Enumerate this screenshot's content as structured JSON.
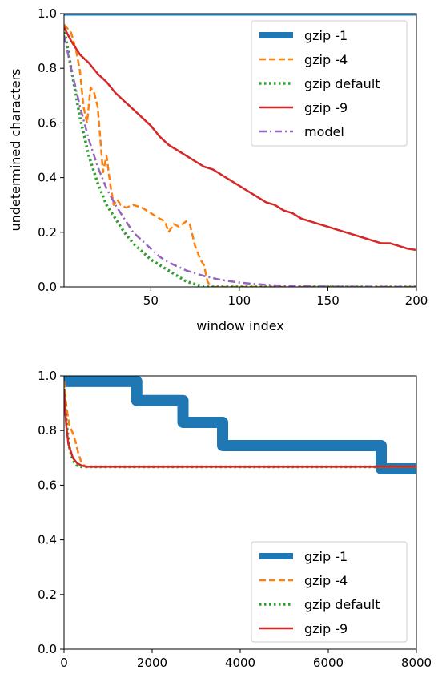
{
  "chart_data": [
    {
      "type": "line",
      "xlabel": "window index",
      "ylabel": "undetermined characters",
      "xlim": [
        1,
        200
      ],
      "ylim": [
        0.0,
        1.0
      ],
      "xticks": [
        50,
        100,
        150,
        200
      ],
      "yticks": [
        0.0,
        0.2,
        0.4,
        0.6,
        0.8,
        1.0
      ],
      "xtick_labels": [
        "50",
        "100",
        "150",
        "200"
      ],
      "ytick_labels": [
        "0.0",
        "0.2",
        "0.4",
        "0.6",
        "0.8",
        "1.0"
      ],
      "legend_position": "top-right",
      "grid": false,
      "series": [
        {
          "name": "gzip -1",
          "color": "#1f77b4",
          "style": "solid-thick",
          "points": [
            [
              1,
              1.0
            ],
            [
              200,
              1.0
            ]
          ]
        },
        {
          "name": "gzip -4",
          "color": "#ff7f0e",
          "style": "dashed",
          "points": [
            [
              1,
              0.96
            ],
            [
              5,
              0.93
            ],
            [
              8,
              0.86
            ],
            [
              10,
              0.79
            ],
            [
              12,
              0.66
            ],
            [
              14,
              0.6
            ],
            [
              16,
              0.73
            ],
            [
              18,
              0.71
            ],
            [
              20,
              0.66
            ],
            [
              22,
              0.5
            ],
            [
              23,
              0.42
            ],
            [
              25,
              0.48
            ],
            [
              27,
              0.38
            ],
            [
              29,
              0.3
            ],
            [
              31,
              0.32
            ],
            [
              33,
              0.3
            ],
            [
              36,
              0.29
            ],
            [
              40,
              0.3
            ],
            [
              45,
              0.29
            ],
            [
              50,
              0.27
            ],
            [
              55,
              0.25
            ],
            [
              58,
              0.24
            ],
            [
              60,
              0.2
            ],
            [
              63,
              0.23
            ],
            [
              66,
              0.22
            ],
            [
              70,
              0.24
            ],
            [
              72,
              0.23
            ],
            [
              75,
              0.15
            ],
            [
              78,
              0.1
            ],
            [
              80,
              0.08
            ],
            [
              82,
              0.02
            ],
            [
              84,
              0.0
            ],
            [
              200,
              0.0
            ]
          ]
        },
        {
          "name": "gzip default",
          "color": "#2ca02c",
          "style": "dotted",
          "points": [
            [
              1,
              0.95
            ],
            [
              5,
              0.8
            ],
            [
              10,
              0.62
            ],
            [
              15,
              0.48
            ],
            [
              20,
              0.38
            ],
            [
              25,
              0.3
            ],
            [
              30,
              0.25
            ],
            [
              35,
              0.2
            ],
            [
              40,
              0.16
            ],
            [
              45,
              0.13
            ],
            [
              50,
              0.1
            ],
            [
              55,
              0.08
            ],
            [
              60,
              0.06
            ],
            [
              65,
              0.04
            ],
            [
              70,
              0.02
            ],
            [
              75,
              0.01
            ],
            [
              80,
              0.0
            ],
            [
              200,
              0.0
            ]
          ]
        },
        {
          "name": "gzip -9",
          "color": "#d62728",
          "style": "solid",
          "points": [
            [
              1,
              0.95
            ],
            [
              5,
              0.9
            ],
            [
              10,
              0.85
            ],
            [
              15,
              0.82
            ],
            [
              20,
              0.78
            ],
            [
              25,
              0.75
            ],
            [
              30,
              0.71
            ],
            [
              35,
              0.68
            ],
            [
              40,
              0.65
            ],
            [
              45,
              0.62
            ],
            [
              50,
              0.59
            ],
            [
              55,
              0.55
            ],
            [
              60,
              0.52
            ],
            [
              65,
              0.5
            ],
            [
              70,
              0.48
            ],
            [
              75,
              0.46
            ],
            [
              80,
              0.44
            ],
            [
              85,
              0.43
            ],
            [
              90,
              0.41
            ],
            [
              95,
              0.39
            ],
            [
              100,
              0.37
            ],
            [
              105,
              0.35
            ],
            [
              110,
              0.33
            ],
            [
              115,
              0.31
            ],
            [
              120,
              0.3
            ],
            [
              125,
              0.28
            ],
            [
              130,
              0.27
            ],
            [
              135,
              0.25
            ],
            [
              140,
              0.24
            ],
            [
              145,
              0.23
            ],
            [
              150,
              0.22
            ],
            [
              155,
              0.21
            ],
            [
              160,
              0.2
            ],
            [
              165,
              0.19
            ],
            [
              170,
              0.18
            ],
            [
              175,
              0.17
            ],
            [
              180,
              0.16
            ],
            [
              185,
              0.16
            ],
            [
              190,
              0.15
            ],
            [
              195,
              0.14
            ],
            [
              200,
              0.135
            ]
          ]
        },
        {
          "name": "model",
          "color": "#9467bd",
          "style": "dashdot",
          "points": [
            [
              1,
              0.92
            ],
            [
              5,
              0.8
            ],
            [
              10,
              0.66
            ],
            [
              15,
              0.54
            ],
            [
              20,
              0.44
            ],
            [
              25,
              0.36
            ],
            [
              30,
              0.3
            ],
            [
              35,
              0.25
            ],
            [
              40,
              0.2
            ],
            [
              45,
              0.17
            ],
            [
              50,
              0.14
            ],
            [
              55,
              0.11
            ],
            [
              60,
              0.09
            ],
            [
              65,
              0.075
            ],
            [
              70,
              0.06
            ],
            [
              75,
              0.05
            ],
            [
              80,
              0.04
            ],
            [
              90,
              0.025
            ],
            [
              100,
              0.016
            ],
            [
              110,
              0.01
            ],
            [
              120,
              0.006
            ],
            [
              140,
              0.002
            ],
            [
              160,
              0.001
            ],
            [
              200,
              0.0
            ]
          ]
        }
      ]
    },
    {
      "type": "line",
      "xlabel": "",
      "ylabel": "",
      "xlim": [
        0,
        8000
      ],
      "ylim": [
        0.0,
        1.0
      ],
      "xticks": [
        0,
        2000,
        4000,
        6000,
        8000
      ],
      "yticks": [
        0.0,
        0.2,
        0.4,
        0.6,
        0.8,
        1.0
      ],
      "xtick_labels": [
        "0",
        "2000",
        "4000",
        "6000",
        "8000"
      ],
      "ytick_labels": [
        "0.0",
        "0.2",
        "0.4",
        "0.6",
        "0.8",
        "1.0"
      ],
      "legend_position": "bottom-right",
      "grid": false,
      "series": [
        {
          "name": "gzip -1",
          "color": "#1f77b4",
          "style": "solid-band",
          "points": [
            [
              0,
              0.98
            ],
            [
              1650,
              0.98
            ],
            [
              1650,
              0.91
            ],
            [
              2700,
              0.91
            ],
            [
              2700,
              0.83
            ],
            [
              3600,
              0.83
            ],
            [
              3600,
              0.745
            ],
            [
              7200,
              0.745
            ],
            [
              7200,
              0.66
            ],
            [
              8000,
              0.66
            ]
          ]
        },
        {
          "name": "gzip -4",
          "color": "#ff7f0e",
          "style": "dashed",
          "points": [
            [
              0,
              0.98
            ],
            [
              60,
              0.88
            ],
            [
              120,
              0.82
            ],
            [
              200,
              0.79
            ],
            [
              260,
              0.76
            ],
            [
              320,
              0.72
            ],
            [
              400,
              0.68
            ],
            [
              500,
              0.667
            ],
            [
              8000,
              0.667
            ]
          ]
        },
        {
          "name": "gzip default",
          "color": "#2ca02c",
          "style": "dotted",
          "points": [
            [
              0,
              0.95
            ],
            [
              60,
              0.82
            ],
            [
              120,
              0.74
            ],
            [
              200,
              0.69
            ],
            [
              300,
              0.672
            ],
            [
              400,
              0.667
            ],
            [
              8000,
              0.667
            ]
          ]
        },
        {
          "name": "gzip -9",
          "color": "#d62728",
          "style": "solid",
          "points": [
            [
              0,
              0.95
            ],
            [
              50,
              0.82
            ],
            [
              100,
              0.75
            ],
            [
              200,
              0.7
            ],
            [
              300,
              0.68
            ],
            [
              400,
              0.672
            ],
            [
              500,
              0.668
            ],
            [
              8000,
              0.668
            ]
          ]
        }
      ]
    }
  ]
}
